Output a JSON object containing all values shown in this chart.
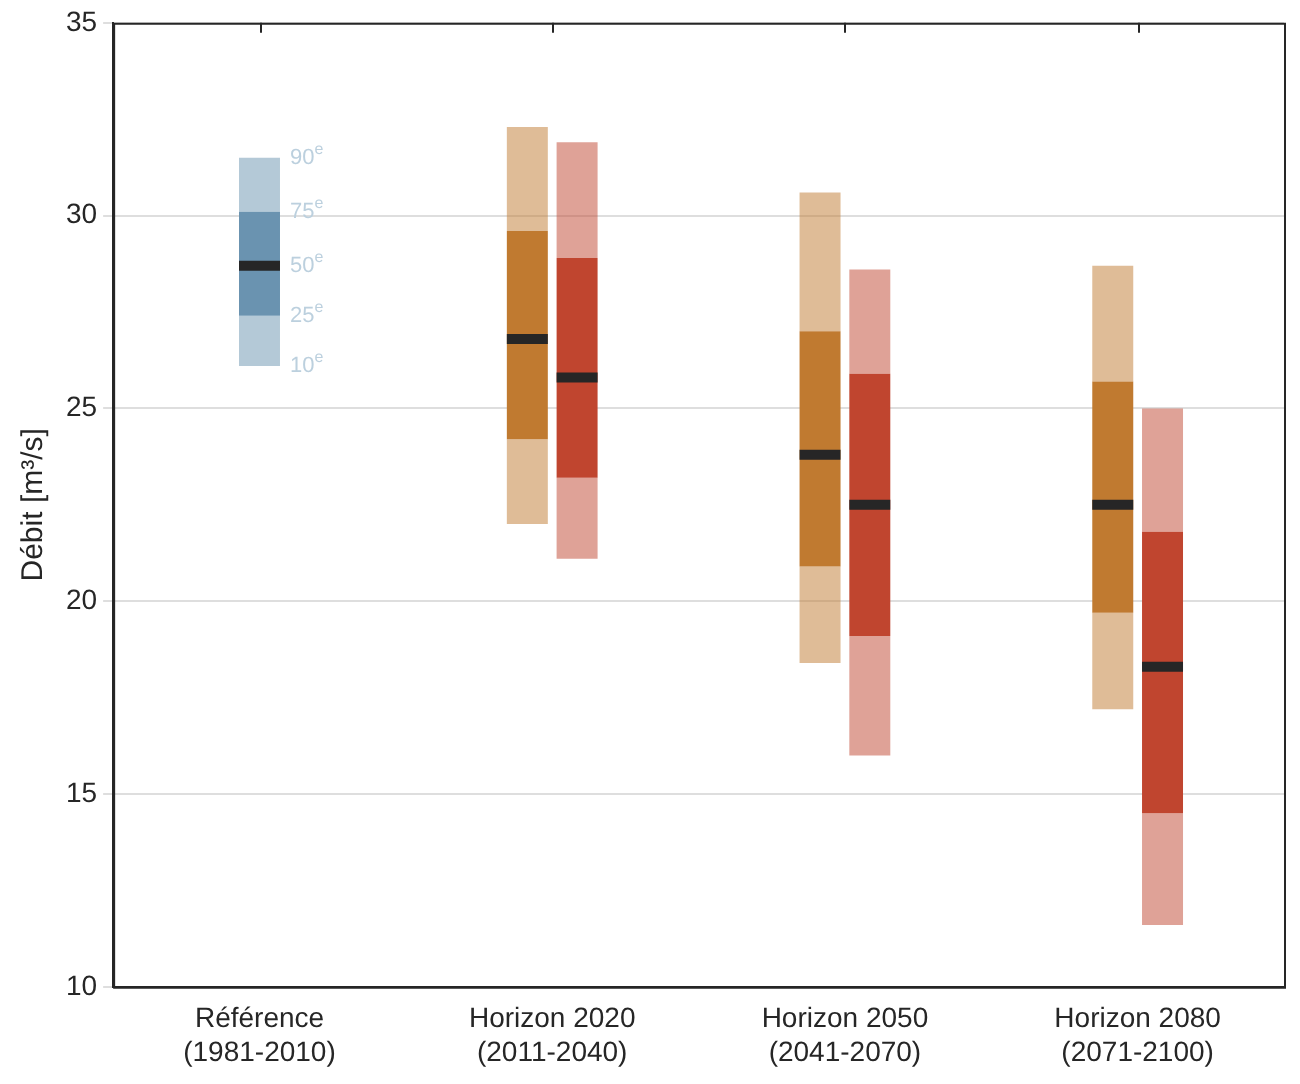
{
  "chart_data": {
    "type": "box",
    "ylabel": "Débit [m³/s]",
    "categories": [
      "Référence\n(1981-2010)",
      "Horizon 2020\n(2011-2040)",
      "Horizon 2050\n(2041-2070)",
      "Horizon 2080\n(2071-2100)"
    ],
    "series": [
      {
        "color": "#6a93b0",
        "boxes": [
          {
            "low": 26.1,
            "q1": 27.4,
            "median": 28.7,
            "q3": 30.1,
            "high": 31.5
          },
          null,
          null,
          null
        ]
      },
      {
        "color": "#c07a30",
        "boxes": [
          null,
          {
            "low": 22.0,
            "q1": 24.2,
            "median": 26.8,
            "q3": 29.6,
            "high": 32.3
          },
          {
            "low": 18.4,
            "q1": 20.9,
            "median": 23.8,
            "q3": 27.0,
            "high": 30.6
          },
          {
            "low": 17.2,
            "q1": 19.7,
            "median": 22.5,
            "q3": 25.7,
            "high": 28.7
          }
        ]
      },
      {
        "color": "#c0452f",
        "boxes": [
          null,
          {
            "low": 21.1,
            "q1": 23.2,
            "median": 25.8,
            "q3": 28.9,
            "high": 31.9
          },
          {
            "low": 16.0,
            "q1": 19.1,
            "median": 22.5,
            "q3": 25.9,
            "high": 28.6
          },
          {
            "low": 11.6,
            "q1": 14.5,
            "median": 18.3,
            "q3": 21.8,
            "high": 25.0
          }
        ]
      }
    ],
    "annotations": [
      {
        "text": "90$^{e}$",
        "x": "Référence\n(1981-2010)",
        "y": 31.5
      },
      {
        "text": "75$^{e}$",
        "x": "Référence\n(1981-2010)",
        "y": 30.1
      },
      {
        "text": "50$^{e}$",
        "x": "Référence\n(1981-2010)",
        "y": 28.7
      },
      {
        "text": "25$^{e}$",
        "x": "Référence\n(1981-2010)",
        "y": 27.4
      },
      {
        "text": "10$^{e}$",
        "x": "Référence\n(1981-2010)",
        "y": 26.1
      }
    ],
    "ylim": [
      10,
      35
    ],
    "yticks": [
      10,
      15,
      20,
      25,
      30,
      35
    ],
    "grid": "y",
    "legend": false
  }
}
